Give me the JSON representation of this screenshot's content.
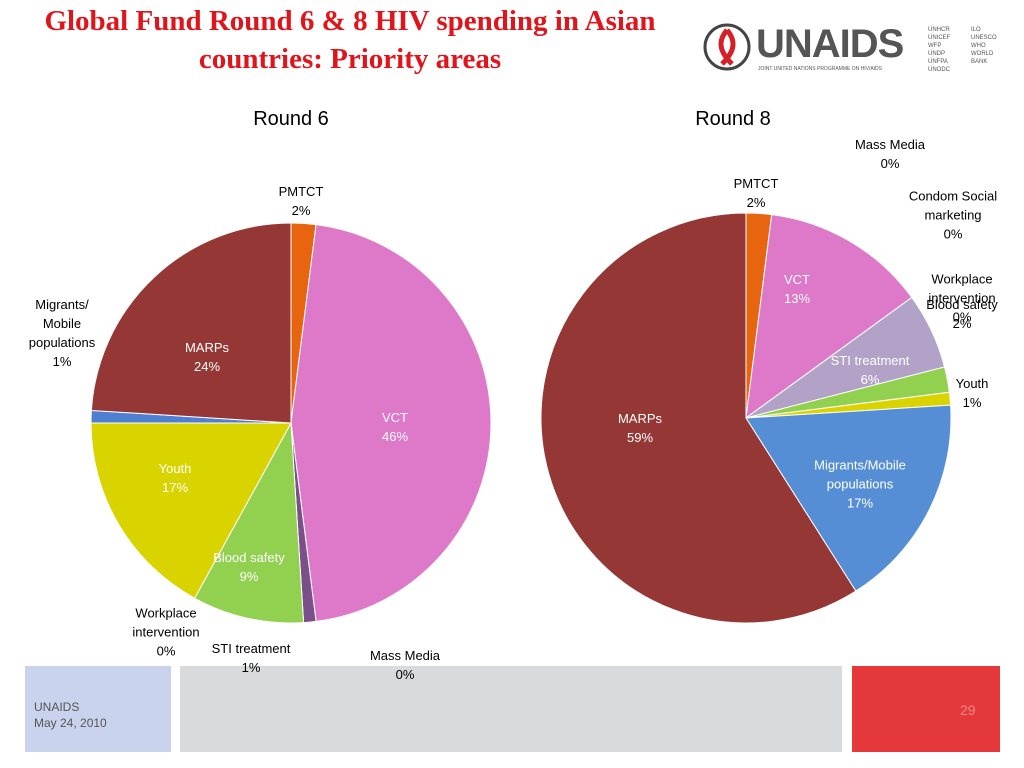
{
  "title": "Global Fund Round 6 & 8 HIV spending in Asian countries: Priority areas",
  "logo": {
    "name": "UNAIDS",
    "tagline": "JOINT UNITED NATIONS PROGRAMME ON HIV/AIDS",
    "cosponsors": [
      "UNHCR",
      "UNICEF",
      "WFP",
      "UNDP",
      "UNFPA",
      "UNODC",
      "ILO",
      "UNESCO",
      "WHO",
      "WORLD BANK"
    ]
  },
  "chart_data": [
    {
      "type": "pie",
      "title": "Round 6",
      "categories": [
        "PMTCT",
        "VCT",
        "Mass Media",
        "STI treatment",
        "Workplace intervention",
        "Blood safety",
        "Youth",
        "Migrants/ Mobile populations",
        "MARPs"
      ],
      "values": [
        2,
        46,
        0,
        1,
        0,
        9,
        17,
        1,
        24
      ],
      "value_labels": [
        "2%",
        "46%",
        "0%",
        "1%",
        "0%",
        "9%",
        "17%",
        "1%",
        "24%"
      ],
      "colors": [
        "#e8650f",
        "#de78c8",
        "#5b5b9a",
        "#7a4f8a",
        "#4a86c8",
        "#92d050",
        "#d9d400",
        "#4f7fd0",
        "#953735"
      ]
    },
    {
      "type": "pie",
      "title": "Round 8",
      "categories": [
        "PMTCT",
        "VCT",
        "Mass Media",
        "Condom Social marketing",
        "Workplace intervention",
        "STI treatment",
        "Blood safety",
        "Youth",
        "Migrants/Mobile populations",
        "MARPs"
      ],
      "values": [
        2,
        13,
        0,
        0,
        0,
        6,
        2,
        1,
        17,
        59
      ],
      "value_labels": [
        "2%",
        "13%",
        "0%",
        "0%",
        "0%",
        "6%",
        "2%",
        "1%",
        "17%",
        "59%"
      ],
      "colors": [
        "#e8650f",
        "#de78c8",
        "#5b5b9a",
        "#4a4a4a",
        "#4a86c8",
        "#b3a2c7",
        "#92d050",
        "#d9d400",
        "#558ed5",
        "#953735"
      ]
    }
  ],
  "footer": {
    "org": "UNAIDS",
    "date": "May 24, 2010",
    "page": "29"
  }
}
